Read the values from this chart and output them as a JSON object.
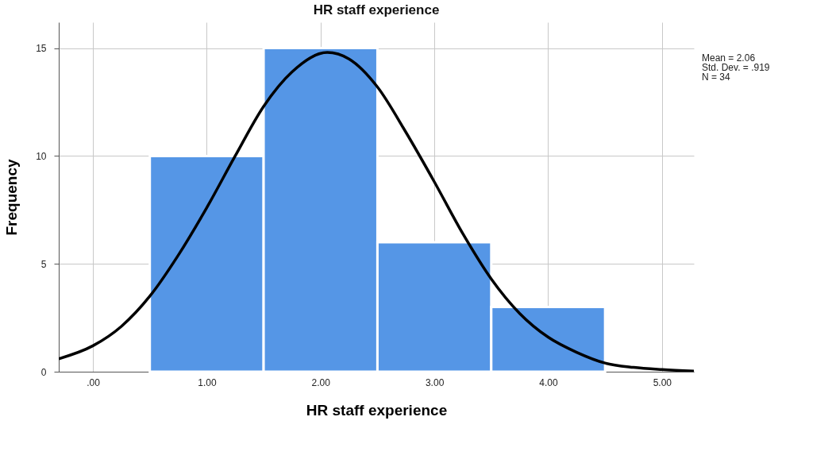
{
  "chart_data": {
    "type": "histogram",
    "title": "HR staff experience",
    "xlabel": "HR staff experience",
    "ylabel": "Frequency",
    "annotations": [
      "Mean = 2.06",
      "Std. Dev. = .919",
      "N = 34"
    ],
    "xlim": [
      -0.3,
      5.28
    ],
    "ylim": [
      0,
      16.2
    ],
    "xticks": [
      {
        "value": 0,
        "label": ".00"
      },
      {
        "value": 1,
        "label": "1.00"
      },
      {
        "value": 2,
        "label": "2.00"
      },
      {
        "value": 3,
        "label": "3.00"
      },
      {
        "value": 4,
        "label": "4.00"
      },
      {
        "value": 5,
        "label": "5.00"
      }
    ],
    "yticks": [
      0,
      5,
      10,
      15
    ],
    "grid": true,
    "series": [
      {
        "color": "#5596e6",
        "bins": [
          0.5,
          1.5,
          2.5,
          3.5,
          4.5
        ],
        "values": [
          10,
          15,
          6,
          3
        ]
      },
      {
        "type": "line",
        "color": "#000000",
        "x": [
          -0.3,
          0,
          0.25,
          0.5,
          0.75,
          1,
          1.25,
          1.5,
          1.75,
          2.06,
          2.25,
          2.5,
          2.75,
          3,
          3.25,
          3.5,
          3.75,
          4,
          4.25,
          4.5,
          4.75,
          5,
          5.28
        ],
        "values": [
          0.6,
          1.2,
          2.1,
          3.5,
          5.4,
          7.6,
          10,
          12.3,
          13.9,
          14.8,
          14.5,
          13.2,
          11.1,
          8.8,
          6.4,
          4.3,
          2.7,
          1.6,
          0.9,
          0.4,
          0.2,
          0.1,
          0.03
        ]
      }
    ]
  }
}
